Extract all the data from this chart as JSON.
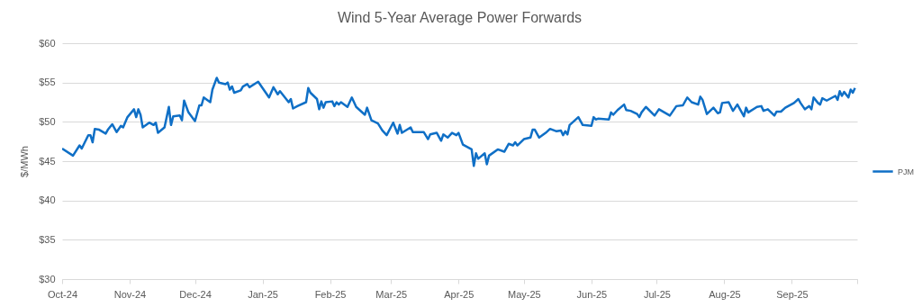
{
  "chart_data": {
    "type": "line",
    "title": "Wind 5-Year Average Power Forwards",
    "ylabel": "$/MWh",
    "xlim": [
      "2024-10-01",
      "2025-10-01"
    ],
    "xticks": [
      {
        "value": "2024-10-01",
        "label": "Oct-24"
      },
      {
        "value": "2024-11-01",
        "label": "Nov-24"
      },
      {
        "value": "2024-12-01",
        "label": "Dec-24"
      },
      {
        "value": "2025-01-01",
        "label": "Jan-25"
      },
      {
        "value": "2025-02-01",
        "label": "Feb-25"
      },
      {
        "value": "2025-03-01",
        "label": "Mar-25"
      },
      {
        "value": "2025-04-01",
        "label": "Apr-25"
      },
      {
        "value": "2025-05-01",
        "label": "May-25"
      },
      {
        "value": "2025-06-01",
        "label": "Jun-25"
      },
      {
        "value": "2025-07-01",
        "label": "Jul-25"
      },
      {
        "value": "2025-08-01",
        "label": "Aug-25"
      },
      {
        "value": "2025-09-01",
        "label": "Sep-25"
      },
      {
        "value": "2025-10-01",
        "label": null
      }
    ],
    "ylim": [
      30,
      60
    ],
    "yticks": [
      {
        "value": 30,
        "label": "$30"
      },
      {
        "value": 35,
        "label": "$35"
      },
      {
        "value": 40,
        "label": "$40"
      },
      {
        "value": 45,
        "label": "$45"
      },
      {
        "value": 50,
        "label": "$50"
      },
      {
        "value": 55,
        "label": "$55"
      },
      {
        "value": 60,
        "label": "$60"
      }
    ],
    "grid": "y",
    "legend": "right",
    "marker": "none",
    "line_style": "solid",
    "x": [
      "2024-10-01",
      "2024-10-06",
      "2024-10-09",
      "2024-10-10",
      "2024-10-13",
      "2024-10-14",
      "2024-10-15",
      "2024-10-16",
      "2024-10-18",
      "2024-10-21",
      "2024-10-22",
      "2024-10-24",
      "2024-10-26",
      "2024-10-28",
      "2024-10-29",
      "2024-10-31",
      "2024-11-03",
      "2024-11-04",
      "2024-11-05",
      "2024-11-06",
      "2024-11-07",
      "2024-11-10",
      "2024-11-12",
      "2024-11-13",
      "2024-11-14",
      "2024-11-17",
      "2024-11-19",
      "2024-11-20",
      "2024-11-21",
      "2024-11-24",
      "2024-11-25",
      "2024-11-26",
      "2024-11-28",
      "2024-12-01",
      "2024-12-03",
      "2024-12-04",
      "2024-12-05",
      "2024-12-08",
      "2024-12-09",
      "2024-12-11",
      "2024-12-12",
      "2024-12-15",
      "2024-12-16",
      "2024-12-17",
      "2024-12-18",
      "2024-12-19",
      "2024-12-22",
      "2024-12-23",
      "2024-12-25",
      "2024-12-26",
      "2024-12-30",
      "2025-01-02",
      "2025-01-04",
      "2025-01-06",
      "2025-01-08",
      "2025-01-09",
      "2025-01-13",
      "2025-01-14",
      "2025-01-15",
      "2025-01-17",
      "2025-01-21",
      "2025-01-22",
      "2025-01-23",
      "2025-01-26",
      "2025-01-27",
      "2025-01-28",
      "2025-01-29",
      "2025-01-30",
      "2025-02-02",
      "2025-02-03",
      "2025-02-04",
      "2025-02-05",
      "2025-02-06",
      "2025-02-09",
      "2025-02-11",
      "2025-02-13",
      "2025-02-17",
      "2025-02-18",
      "2025-02-20",
      "2025-02-23",
      "2025-02-25",
      "2025-02-27",
      "2025-03-02",
      "2025-03-04",
      "2025-03-05",
      "2025-03-06",
      "2025-03-10",
      "2025-03-11",
      "2025-03-16",
      "2025-03-18",
      "2025-03-19",
      "2025-03-22",
      "2025-03-24",
      "2025-03-25",
      "2025-03-27",
      "2025-03-29",
      "2025-03-31",
      "2025-04-01",
      "2025-04-03",
      "2025-04-07",
      "2025-04-08",
      "2025-04-09",
      "2025-04-10",
      "2025-04-13",
      "2025-04-14",
      "2025-04-15",
      "2025-04-19",
      "2025-04-22",
      "2025-04-24",
      "2025-04-26",
      "2025-04-27",
      "2025-04-28",
      "2025-05-01",
      "2025-05-04",
      "2025-05-05",
      "2025-05-06",
      "2025-05-08",
      "2025-05-11",
      "2025-05-13",
      "2025-05-16",
      "2025-05-18",
      "2025-05-19",
      "2025-05-20",
      "2025-05-21",
      "2025-05-22",
      "2025-05-26",
      "2025-05-28",
      "2025-06-01",
      "2025-06-02",
      "2025-06-03",
      "2025-06-04",
      "2025-06-09",
      "2025-06-10",
      "2025-06-11",
      "2025-06-13",
      "2025-06-16",
      "2025-06-17",
      "2025-06-19",
      "2025-06-22",
      "2025-06-23",
      "2025-06-24",
      "2025-06-26",
      "2025-06-30",
      "2025-07-02",
      "2025-07-07",
      "2025-07-10",
      "2025-07-13",
      "2025-07-15",
      "2025-07-17",
      "2025-07-20",
      "2025-07-21",
      "2025-07-22",
      "2025-07-24",
      "2025-07-27",
      "2025-07-29",
      "2025-07-30",
      "2025-07-31",
      "2025-08-03",
      "2025-08-05",
      "2025-08-07",
      "2025-08-10",
      "2025-08-11",
      "2025-08-12",
      "2025-08-16",
      "2025-08-18",
      "2025-08-19",
      "2025-08-21",
      "2025-08-24",
      "2025-08-25",
      "2025-08-27",
      "2025-08-29",
      "2025-09-02",
      "2025-09-04",
      "2025-09-05",
      "2025-09-07",
      "2025-09-09",
      "2025-09-10",
      "2025-09-11",
      "2025-09-13",
      "2025-09-14",
      "2025-09-15",
      "2025-09-17",
      "2025-09-21",
      "2025-09-22",
      "2025-09-23",
      "2025-09-24",
      "2025-09-25",
      "2025-09-27",
      "2025-09-28",
      "2025-09-29",
      "2025-09-30"
    ],
    "series": [
      {
        "name": "PJM",
        "color": "#0f6fc6",
        "values": [
          46.6,
          45.7,
          47.0,
          46.6,
          48.3,
          48.3,
          47.4,
          49.1,
          49.0,
          48.5,
          49.0,
          49.7,
          48.7,
          49.5,
          49.3,
          50.6,
          51.6,
          50.6,
          51.6,
          50.9,
          49.3,
          49.9,
          49.6,
          49.9,
          48.6,
          49.3,
          51.9,
          49.6,
          50.7,
          50.8,
          50.2,
          52.7,
          51.2,
          50.1,
          52.1,
          52.1,
          53.1,
          52.5,
          54.1,
          55.6,
          55.0,
          54.8,
          55.0,
          54.1,
          54.5,
          53.7,
          54.0,
          54.5,
          54.8,
          54.4,
          55.1,
          53.9,
          53.1,
          54.4,
          53.5,
          53.9,
          52.5,
          52.9,
          51.7,
          52.0,
          52.5,
          54.3,
          53.7,
          52.9,
          51.6,
          52.6,
          51.8,
          52.5,
          52.6,
          52.0,
          52.5,
          52.2,
          52.5,
          51.9,
          53.1,
          51.9,
          50.9,
          51.8,
          50.2,
          49.8,
          48.9,
          48.3,
          49.9,
          48.5,
          49.6,
          48.6,
          49.3,
          48.7,
          48.7,
          47.8,
          48.4,
          48.6,
          47.6,
          48.4,
          48.0,
          48.6,
          48.3,
          48.6,
          47.1,
          46.5,
          44.4,
          46.0,
          45.3,
          46.0,
          44.6,
          45.7,
          46.5,
          46.2,
          47.2,
          47.0,
          47.4,
          47.0,
          47.8,
          48.0,
          49.0,
          49.0,
          48.0,
          48.6,
          49.1,
          48.8,
          48.9,
          48.3,
          48.8,
          48.4,
          49.6,
          50.6,
          49.6,
          49.5,
          50.6,
          50.3,
          50.4,
          50.3,
          51.2,
          50.9,
          51.5,
          52.2,
          51.5,
          51.4,
          51.0,
          50.6,
          51.2,
          51.9,
          50.8,
          51.6,
          50.8,
          52.0,
          52.1,
          53.1,
          52.5,
          52.2,
          53.2,
          52.8,
          51.0,
          51.8,
          51.1,
          51.2,
          52.4,
          52.5,
          51.4,
          52.2,
          50.7,
          51.8,
          51.2,
          51.9,
          52.0,
          51.4,
          51.6,
          50.8,
          51.3,
          51.3,
          51.8,
          52.4,
          52.9,
          52.4,
          51.6,
          52.0,
          51.6,
          53.1,
          52.4,
          52.2,
          53.0,
          52.7,
          53.3,
          52.8,
          53.9,
          53.3,
          53.8,
          53.1,
          54.1,
          53.7,
          54.3
        ]
      }
    ]
  }
}
